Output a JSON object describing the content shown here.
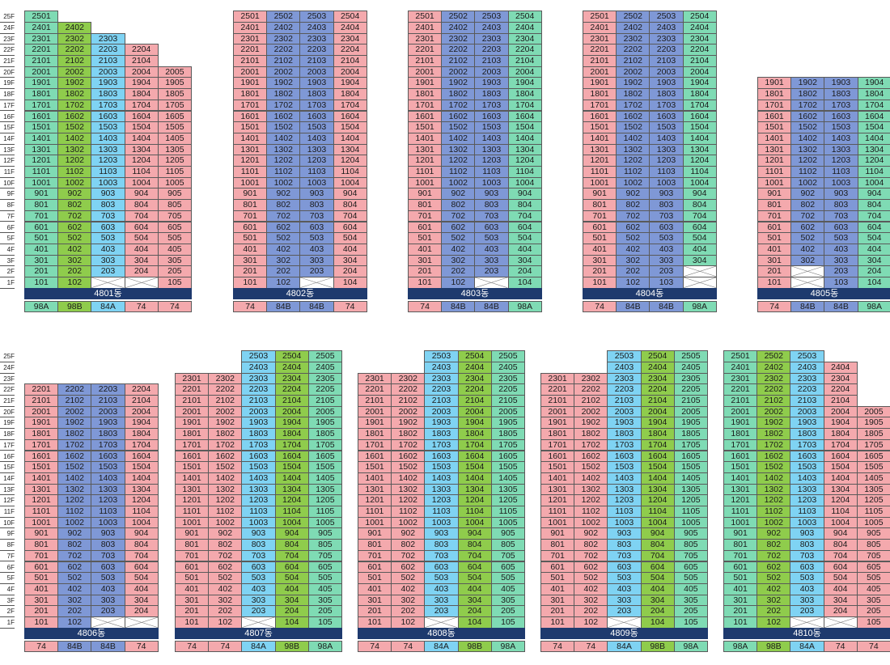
{
  "colors": {
    "74": "#f4a9ad",
    "84A": "#7fd3f3",
    "84B": "#7f98d6",
    "98A": "#7fdbb4",
    "98B": "#8fcc4c",
    "blank": "#ffffff",
    "name_bar": "#1e3a6e"
  },
  "floor_labels": [
    "25F",
    "24F",
    "23F",
    "22F",
    "21F",
    "20F",
    "19F",
    "18F",
    "17F",
    "16F",
    "15F",
    "14F",
    "13F",
    "12F",
    "11F",
    "10F",
    "9F",
    "8F",
    "7F",
    "6F",
    "5F",
    "4F",
    "3F",
    "2F",
    "1F"
  ],
  "buildings": [
    {
      "name": "4801동",
      "types": [
        "98A",
        "98B",
        "84A",
        "74",
        "74"
      ],
      "top": [
        25,
        24,
        23,
        22,
        20
      ],
      "bottom": [
        1,
        1,
        1,
        1,
        1
      ],
      "blanks": [
        [
          1,
          4
        ],
        [
          1,
          3
        ]
      ]
    },
    {
      "name": "4802동",
      "types": [
        "74",
        "84B",
        "84B",
        "74"
      ],
      "top": [
        25,
        25,
        25,
        25
      ],
      "bottom": [
        1,
        1,
        1,
        1
      ],
      "blanks": [
        [
          1,
          3
        ]
      ]
    },
    {
      "name": "4803동",
      "types": [
        "74",
        "84B",
        "84B",
        "98A"
      ],
      "top": [
        25,
        25,
        25,
        25
      ],
      "bottom": [
        1,
        1,
        1,
        1
      ],
      "blanks": [
        [
          1,
          3
        ]
      ]
    },
    {
      "name": "4804동",
      "types": [
        "74",
        "84B",
        "84B",
        "98A"
      ],
      "top": [
        25,
        25,
        25,
        25
      ],
      "bottom": [
        1,
        1,
        1,
        1
      ],
      "blanks": [
        [
          1,
          4
        ],
        [
          2,
          4
        ]
      ]
    },
    {
      "name": "4805동",
      "types": [
        "74",
        "84B",
        "84B",
        "98A"
      ],
      "top": [
        19,
        19,
        19,
        19
      ],
      "bottom": [
        1,
        1,
        1,
        1
      ],
      "blanks": [
        [
          1,
          2
        ],
        [
          2,
          2
        ]
      ]
    },
    {
      "name": "4806동",
      "types": [
        "74",
        "84B",
        "84B",
        "74"
      ],
      "top": [
        22,
        22,
        22,
        22
      ],
      "bottom": [
        1,
        1,
        1,
        1
      ],
      "blanks": [
        [
          1,
          3
        ],
        [
          1,
          4
        ]
      ]
    },
    {
      "name": "4807동",
      "types": [
        "74",
        "74",
        "84A",
        "98B",
        "98A"
      ],
      "top": [
        23,
        23,
        25,
        25,
        25
      ],
      "bottom": [
        1,
        1,
        1,
        1,
        1
      ],
      "blanks": [
        [
          1,
          3
        ]
      ]
    },
    {
      "name": "4808동",
      "types": [
        "74",
        "74",
        "84A",
        "98B",
        "98A"
      ],
      "top": [
        23,
        23,
        25,
        25,
        25
      ],
      "bottom": [
        1,
        1,
        1,
        1,
        1
      ],
      "blanks": [
        [
          1,
          3
        ]
      ]
    },
    {
      "name": "4809동",
      "types": [
        "74",
        "74",
        "84A",
        "98B",
        "98A"
      ],
      "top": [
        23,
        23,
        25,
        25,
        25
      ],
      "bottom": [
        1,
        1,
        1,
        1,
        1
      ],
      "blanks": [
        [
          1,
          3
        ]
      ]
    },
    {
      "name": "4810동",
      "types": [
        "98A",
        "98B",
        "84A",
        "74",
        "74"
      ],
      "top": [
        25,
        25,
        25,
        24,
        20
      ],
      "bottom": [
        1,
        1,
        1,
        1,
        1
      ],
      "blanks": [
        [
          1,
          3
        ],
        [
          1,
          4
        ]
      ]
    }
  ]
}
